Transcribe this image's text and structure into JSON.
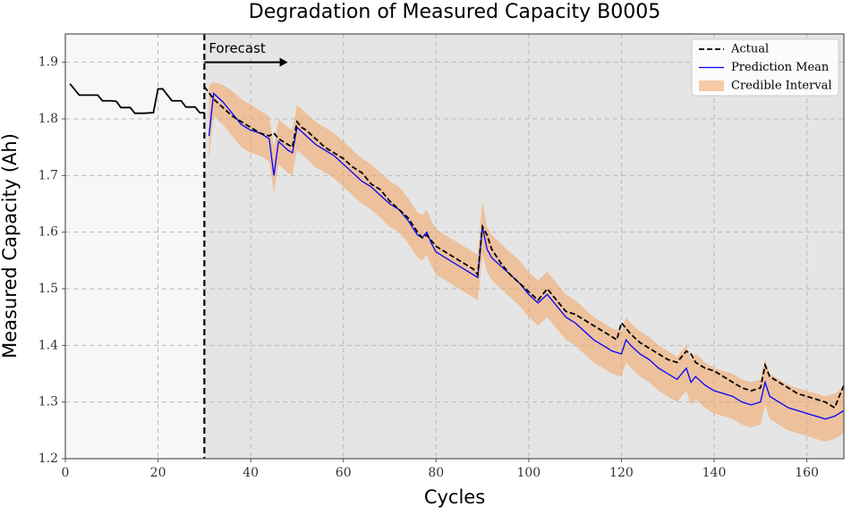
{
  "chart_data": {
    "type": "line",
    "title": "Degradation of Measured Capacity B0005",
    "xlabel": "Cycles",
    "ylabel": "Measured Capacity (Ah)",
    "xlim": [
      0,
      168
    ],
    "ylim": [
      1.2,
      1.95
    ],
    "xticks": [
      0,
      20,
      40,
      60,
      80,
      100,
      120,
      140,
      160
    ],
    "yticks": [
      1.2,
      1.3,
      1.4,
      1.5,
      1.6,
      1.7,
      1.8,
      1.9
    ],
    "grid": true,
    "legend": "upper right",
    "forecast_start": 30,
    "annotation": {
      "text": "Forecast",
      "x_start": 30,
      "x_end": 48,
      "y": 1.9
    },
    "history": {
      "color": "#000000",
      "x": [
        1,
        3,
        5,
        7,
        8,
        10,
        11,
        12,
        14,
        15,
        17,
        19,
        20,
        21,
        23,
        25,
        26,
        28,
        29,
        30
      ],
      "values": [
        1.862,
        1.842,
        1.842,
        1.842,
        1.832,
        1.832,
        1.831,
        1.82,
        1.82,
        1.81,
        1.81,
        1.811,
        1.853,
        1.853,
        1.832,
        1.832,
        1.821,
        1.821,
        1.811,
        1.811
      ]
    },
    "series": [
      {
        "name": "Actual",
        "color": "#000000",
        "x": [
          30,
          32,
          34,
          36,
          38,
          40,
          42,
          44,
          45,
          46,
          48,
          49,
          50,
          51,
          52,
          54,
          56,
          58,
          60,
          62,
          64,
          66,
          68,
          70,
          72,
          74,
          76,
          77,
          78,
          80,
          82,
          84,
          86,
          88,
          89,
          90,
          91,
          92,
          94,
          96,
          98,
          100,
          102,
          104,
          106,
          108,
          110,
          112,
          114,
          116,
          118,
          119,
          120,
          121,
          122,
          124,
          126,
          128,
          130,
          132,
          134,
          135,
          136,
          138,
          140,
          142,
          144,
          146,
          148,
          150,
          151,
          152,
          154,
          156,
          158,
          160,
          162,
          164,
          166,
          168
        ],
        "values": [
          1.857,
          1.835,
          1.82,
          1.805,
          1.795,
          1.785,
          1.775,
          1.77,
          1.775,
          1.765,
          1.755,
          1.75,
          1.795,
          1.785,
          1.78,
          1.765,
          1.75,
          1.74,
          1.73,
          1.715,
          1.705,
          1.685,
          1.675,
          1.655,
          1.64,
          1.625,
          1.6,
          1.59,
          1.595,
          1.575,
          1.565,
          1.555,
          1.545,
          1.535,
          1.525,
          1.61,
          1.595,
          1.57,
          1.545,
          1.525,
          1.51,
          1.495,
          1.48,
          1.5,
          1.48,
          1.46,
          1.455,
          1.445,
          1.435,
          1.425,
          1.415,
          1.41,
          1.44,
          1.43,
          1.42,
          1.405,
          1.395,
          1.385,
          1.375,
          1.37,
          1.39,
          1.385,
          1.37,
          1.36,
          1.355,
          1.345,
          1.335,
          1.325,
          1.32,
          1.325,
          1.365,
          1.345,
          1.335,
          1.325,
          1.315,
          1.31,
          1.305,
          1.3,
          1.29,
          1.33
        ]
      },
      {
        "name": "Prediction Mean",
        "color": "#0000ff",
        "x": [
          31,
          32,
          34,
          36,
          38,
          40,
          42,
          44,
          45,
          46,
          48,
          49,
          50,
          52,
          54,
          56,
          58,
          60,
          62,
          64,
          66,
          68,
          70,
          72,
          74,
          76,
          77,
          78,
          79,
          80,
          82,
          84,
          86,
          88,
          89,
          90,
          91,
          92,
          94,
          96,
          98,
          100,
          102,
          104,
          106,
          108,
          110,
          112,
          114,
          116,
          118,
          120,
          121,
          122,
          124,
          126,
          128,
          130,
          132,
          134,
          135,
          136,
          138,
          140,
          142,
          144,
          146,
          148,
          150,
          151,
          152,
          154,
          156,
          158,
          160,
          162,
          164,
          166,
          168
        ],
        "values": [
          1.77,
          1.845,
          1.83,
          1.81,
          1.79,
          1.78,
          1.775,
          1.765,
          1.7,
          1.76,
          1.745,
          1.74,
          1.785,
          1.77,
          1.755,
          1.745,
          1.735,
          1.72,
          1.705,
          1.69,
          1.68,
          1.665,
          1.65,
          1.64,
          1.62,
          1.595,
          1.59,
          1.6,
          1.58,
          1.565,
          1.555,
          1.545,
          1.535,
          1.525,
          1.52,
          1.61,
          1.57,
          1.555,
          1.54,
          1.525,
          1.51,
          1.49,
          1.475,
          1.49,
          1.47,
          1.45,
          1.44,
          1.425,
          1.41,
          1.4,
          1.39,
          1.385,
          1.41,
          1.4,
          1.385,
          1.375,
          1.36,
          1.35,
          1.34,
          1.36,
          1.335,
          1.345,
          1.33,
          1.32,
          1.315,
          1.31,
          1.3,
          1.295,
          1.3,
          1.335,
          1.31,
          1.3,
          1.29,
          1.285,
          1.28,
          1.275,
          1.27,
          1.275,
          1.285
        ]
      },
      {
        "name": "Credible Interval",
        "color": "#f4a460",
        "x": [
          31,
          32,
          34,
          36,
          38,
          40,
          42,
          44,
          45,
          46,
          48,
          49,
          50,
          52,
          54,
          56,
          58,
          60,
          62,
          64,
          66,
          68,
          70,
          72,
          74,
          76,
          77,
          78,
          79,
          80,
          82,
          84,
          86,
          88,
          89,
          90,
          91,
          92,
          94,
          96,
          98,
          100,
          102,
          104,
          106,
          108,
          110,
          112,
          114,
          116,
          118,
          120,
          121,
          122,
          124,
          126,
          128,
          130,
          132,
          134,
          135,
          136,
          138,
          140,
          142,
          144,
          146,
          148,
          150,
          151,
          152,
          154,
          156,
          158,
          160,
          162,
          164,
          166,
          168
        ],
        "lower": [
          1.73,
          1.805,
          1.79,
          1.77,
          1.75,
          1.74,
          1.735,
          1.725,
          1.67,
          1.72,
          1.705,
          1.7,
          1.745,
          1.73,
          1.715,
          1.705,
          1.695,
          1.68,
          1.665,
          1.65,
          1.64,
          1.625,
          1.61,
          1.6,
          1.58,
          1.555,
          1.55,
          1.56,
          1.54,
          1.525,
          1.515,
          1.505,
          1.495,
          1.485,
          1.48,
          1.56,
          1.53,
          1.515,
          1.5,
          1.485,
          1.47,
          1.45,
          1.435,
          1.45,
          1.43,
          1.41,
          1.4,
          1.385,
          1.37,
          1.36,
          1.35,
          1.345,
          1.37,
          1.36,
          1.345,
          1.335,
          1.32,
          1.31,
          1.3,
          1.32,
          1.295,
          1.305,
          1.29,
          1.28,
          1.275,
          1.27,
          1.26,
          1.255,
          1.26,
          1.295,
          1.27,
          1.26,
          1.25,
          1.245,
          1.24,
          1.235,
          1.23,
          1.235,
          1.245
        ],
        "upper": [
          1.86,
          1.865,
          1.86,
          1.85,
          1.835,
          1.825,
          1.815,
          1.805,
          1.75,
          1.8,
          1.785,
          1.78,
          1.825,
          1.81,
          1.795,
          1.785,
          1.775,
          1.76,
          1.745,
          1.73,
          1.72,
          1.705,
          1.69,
          1.68,
          1.66,
          1.635,
          1.63,
          1.64,
          1.62,
          1.605,
          1.595,
          1.585,
          1.575,
          1.565,
          1.56,
          1.655,
          1.61,
          1.595,
          1.58,
          1.565,
          1.55,
          1.53,
          1.515,
          1.53,
          1.51,
          1.49,
          1.48,
          1.465,
          1.45,
          1.44,
          1.43,
          1.425,
          1.45,
          1.44,
          1.425,
          1.415,
          1.4,
          1.39,
          1.38,
          1.4,
          1.375,
          1.385,
          1.37,
          1.36,
          1.355,
          1.35,
          1.34,
          1.335,
          1.34,
          1.375,
          1.35,
          1.34,
          1.33,
          1.325,
          1.32,
          1.315,
          1.31,
          1.315,
          1.325
        ]
      }
    ]
  }
}
